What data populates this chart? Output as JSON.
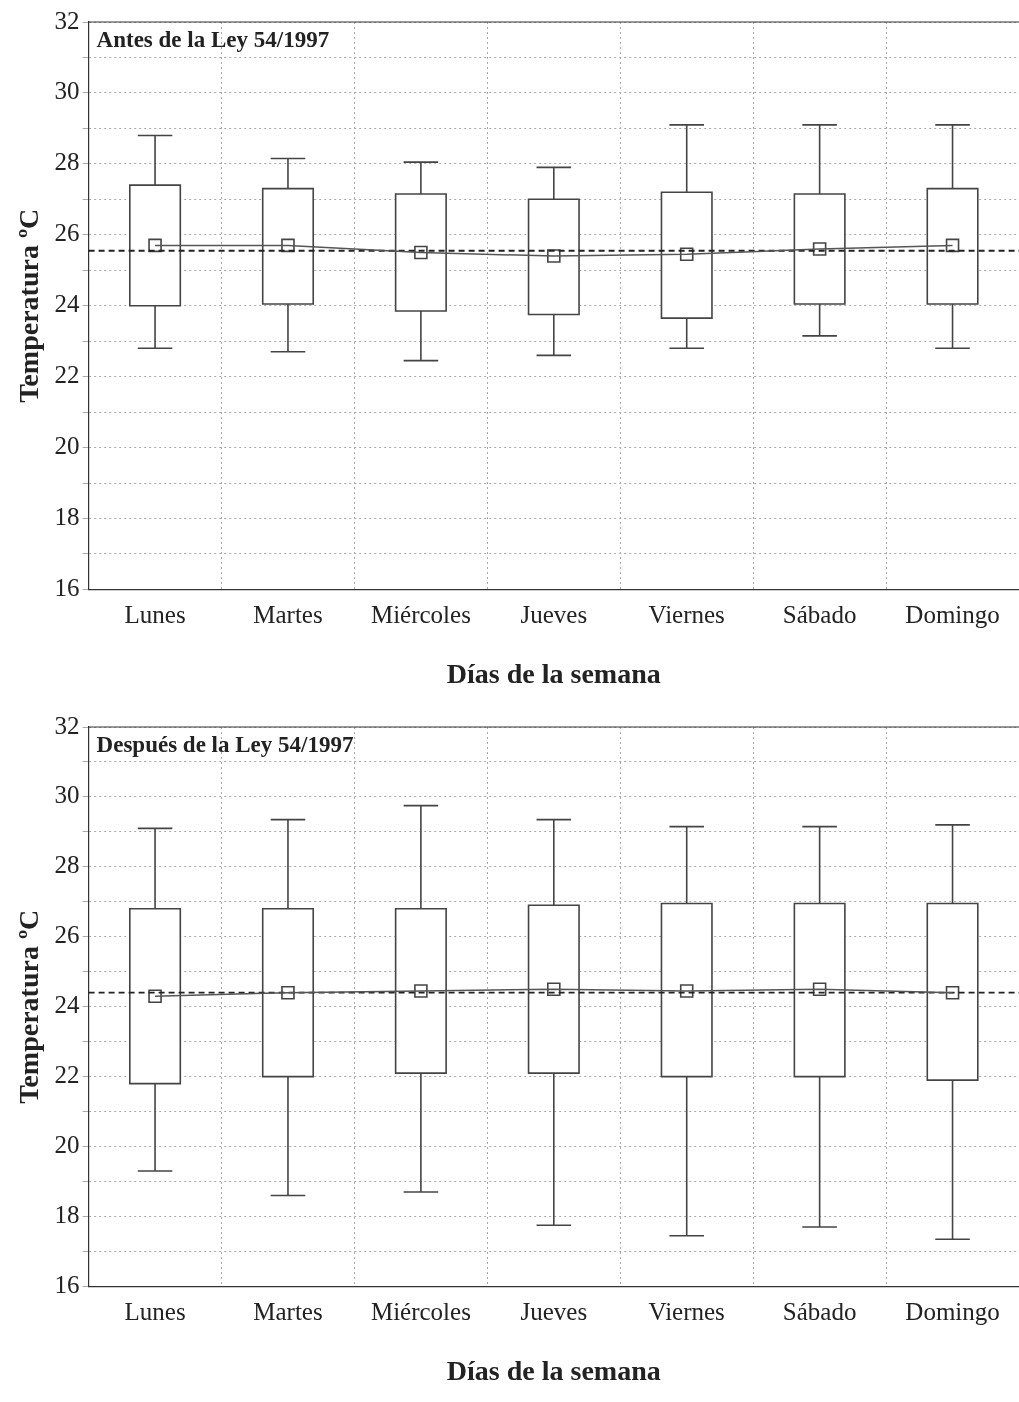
{
  "chart_data": [
    {
      "type": "box",
      "title": "Antes de la Ley 54/1997",
      "xlabel": "Días de la semana",
      "ylabel": "Temperatura ºC",
      "categories": [
        "Lunes",
        "Martes",
        "Miércoles",
        "Jueves",
        "Viernes",
        "Sábado",
        "Domingo"
      ],
      "boxes": [
        {
          "low": 22.8,
          "q1": 24.0,
          "median": 25.7,
          "q3": 27.4,
          "high": 28.8
        },
        {
          "low": 22.7,
          "q1": 24.05,
          "median": 25.7,
          "q3": 27.3,
          "high": 28.15
        },
        {
          "low": 22.45,
          "q1": 23.85,
          "median": 25.5,
          "q3": 27.15,
          "high": 28.05
        },
        {
          "low": 22.6,
          "q1": 23.75,
          "median": 25.4,
          "q3": 27.0,
          "high": 27.9
        },
        {
          "low": 22.8,
          "q1": 23.65,
          "median": 25.45,
          "q3": 27.2,
          "high": 29.1
        },
        {
          "low": 23.15,
          "q1": 24.05,
          "median": 25.6,
          "q3": 27.15,
          "high": 29.1
        },
        {
          "low": 22.8,
          "q1": 24.05,
          "median": 25.7,
          "q3": 27.3,
          "high": 29.1
        }
      ],
      "series": [
        {
          "type": "line",
          "color": "#555555",
          "marker": "none",
          "values": [
            25.7,
            25.7,
            25.5,
            25.4,
            25.45,
            25.6,
            25.7
          ]
        }
      ],
      "ref_lines": [
        {
          "axis": "y",
          "value": 25.55,
          "color": "#222222",
          "line_style": "dashed"
        }
      ],
      "ylim": [
        16,
        32
      ],
      "yticks": [
        16,
        {
          "value": 17,
          "label": null
        },
        18,
        {
          "value": 19,
          "label": null
        },
        20,
        {
          "value": 21,
          "label": null
        },
        22,
        {
          "value": 23,
          "label": null
        },
        24,
        {
          "value": 25,
          "label": null
        },
        26,
        {
          "value": 27,
          "label": null
        },
        28,
        {
          "value": 29,
          "label": null
        },
        30,
        {
          "value": 31,
          "label": null
        },
        32
      ],
      "grid": true,
      "legend": false
    },
    {
      "type": "box",
      "title": "Después de la Ley 54/1997",
      "xlabel": "Días de la semana",
      "ylabel": "Temperatura ºC",
      "categories": [
        "Lunes",
        "Martes",
        "Miércoles",
        "Jueves",
        "Viernes",
        "Sábado",
        "Domingo"
      ],
      "boxes": [
        {
          "low": 19.3,
          "q1": 21.8,
          "median": 24.3,
          "q3": 26.8,
          "high": 29.1
        },
        {
          "low": 18.6,
          "q1": 22.0,
          "median": 24.4,
          "q3": 26.8,
          "high": 29.35
        },
        {
          "low": 18.7,
          "q1": 22.1,
          "median": 24.45,
          "q3": 26.8,
          "high": 29.75
        },
        {
          "low": 17.75,
          "q1": 22.1,
          "median": 24.5,
          "q3": 26.9,
          "high": 29.35
        },
        {
          "low": 17.45,
          "q1": 22.0,
          "median": 24.45,
          "q3": 26.95,
          "high": 29.15
        },
        {
          "low": 17.7,
          "q1": 22.0,
          "median": 24.5,
          "q3": 26.95,
          "high": 29.15
        },
        {
          "low": 17.35,
          "q1": 21.9,
          "median": 24.4,
          "q3": 26.95,
          "high": 29.2
        }
      ],
      "series": [
        {
          "type": "line",
          "color": "#555555",
          "marker": "none",
          "values": [
            24.3,
            24.4,
            24.45,
            24.5,
            24.45,
            24.5,
            24.4
          ]
        }
      ],
      "ref_lines": [
        {
          "axis": "y",
          "value": 24.4,
          "color": "#222222",
          "line_style": "dashed"
        }
      ],
      "ylim": [
        16,
        32
      ],
      "yticks": [
        16,
        {
          "value": 17,
          "label": null
        },
        18,
        {
          "value": 19,
          "label": null
        },
        20,
        {
          "value": 21,
          "label": null
        },
        22,
        {
          "value": 23,
          "label": null
        },
        24,
        {
          "value": 25,
          "label": null
        },
        26,
        {
          "value": 27,
          "label": null
        },
        28,
        {
          "value": 29,
          "label": null
        },
        30,
        {
          "value": 31,
          "label": null
        },
        32
      ],
      "grid": true,
      "legend": false
    }
  ]
}
